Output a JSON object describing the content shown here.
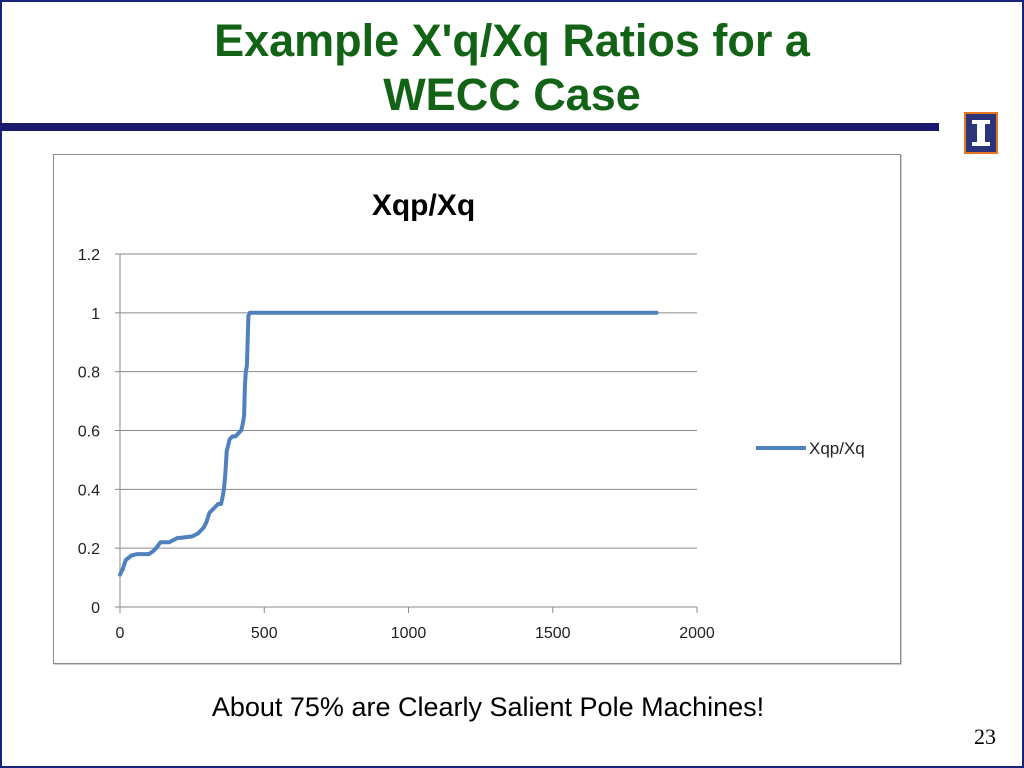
{
  "slide": {
    "title_line1": "Example X'q/Xq Ratios for a",
    "title_line2": "WECC Case",
    "caption": "About 75% are Clearly Salient Pole Machines!",
    "page_number": "23",
    "logo": "university-of-illinois-block-i-icon",
    "colors": {
      "title": "#136316",
      "rule": "#1a1a6e",
      "logo_bg": "#2c3579",
      "logo_border": "#e87722"
    }
  },
  "chart_data": {
    "type": "line",
    "title": "Xqp/Xq",
    "xlabel": "",
    "ylabel": "",
    "xlim": [
      0,
      2000
    ],
    "ylim": [
      0,
      1.2
    ],
    "x_ticks": [
      "0",
      "500",
      "1000",
      "1500",
      "2000"
    ],
    "y_ticks": [
      "0",
      "0.2",
      "0.4",
      "0.6",
      "0.8",
      "1",
      "1.2"
    ],
    "grid": "horizontal",
    "legend": "right",
    "series": [
      {
        "name": "Xqp/Xq",
        "color": "#4f81bd",
        "x": [
          0,
          10,
          20,
          40,
          60,
          80,
          100,
          115,
          125,
          140,
          150,
          170,
          200,
          210,
          250,
          270,
          290,
          300,
          310,
          320,
          330,
          340,
          350,
          355,
          360,
          365,
          370,
          375,
          380,
          390,
          400,
          410,
          420,
          425,
          430,
          433,
          436,
          440,
          445,
          450,
          1860
        ],
        "y": [
          0.11,
          0.13,
          0.16,
          0.175,
          0.18,
          0.18,
          0.18,
          0.19,
          0.2,
          0.22,
          0.22,
          0.22,
          0.235,
          0.235,
          0.24,
          0.25,
          0.27,
          0.29,
          0.32,
          0.33,
          0.34,
          0.35,
          0.35,
          0.37,
          0.4,
          0.45,
          0.53,
          0.55,
          0.57,
          0.58,
          0.58,
          0.59,
          0.6,
          0.62,
          0.65,
          0.75,
          0.8,
          0.82,
          0.99,
          1.0,
          1.0
        ]
      }
    ]
  }
}
